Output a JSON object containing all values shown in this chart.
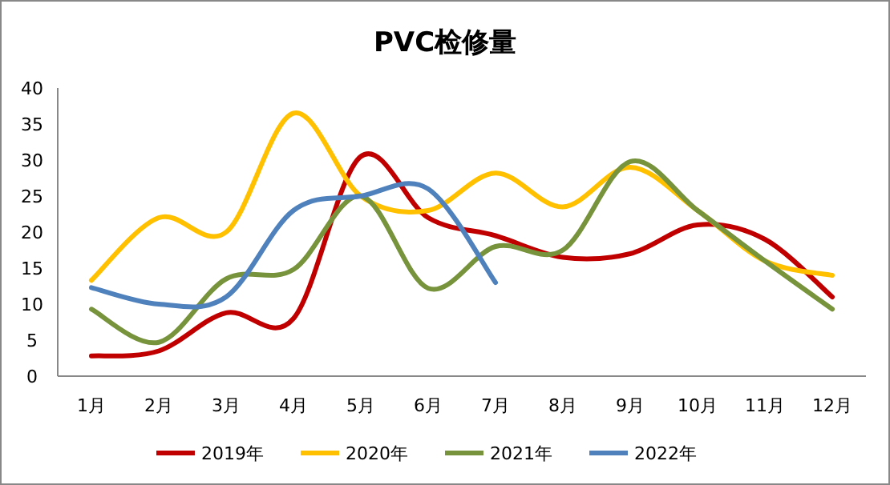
{
  "chart_data": {
    "type": "line",
    "title": "PVC检修量",
    "categories": [
      "1月",
      "2月",
      "3月",
      "4月",
      "5月",
      "6月",
      "7月",
      "8月",
      "9月",
      "10月",
      "11月",
      "12月"
    ],
    "ylim": [
      0,
      40
    ],
    "yticks": [
      0,
      5,
      10,
      15,
      20,
      25,
      30,
      35,
      40
    ],
    "grid": false,
    "legend": "bottom",
    "marker": "none",
    "series": [
      {
        "name": "2019年",
        "color": "#c00000",
        "values": [
          2.8,
          3.5,
          8.8,
          8,
          30.5,
          22,
          19.5,
          16.5,
          17,
          21,
          19,
          11
        ]
      },
      {
        "name": "2020年",
        "color": "#ffc000",
        "values": [
          13.3,
          22,
          20,
          36.5,
          25,
          23,
          28.2,
          23.5,
          29,
          23,
          16,
          14
        ]
      },
      {
        "name": "2021年",
        "color": "#77933c",
        "values": [
          9.3,
          4.7,
          13.5,
          14.8,
          25,
          12.2,
          18,
          17.5,
          29.8,
          23,
          16,
          9.3
        ]
      },
      {
        "name": "2022年",
        "color": "#4f81bd",
        "values": [
          12.3,
          10,
          11,
          23,
          25,
          26,
          13,
          null,
          null,
          null,
          null,
          null
        ]
      }
    ]
  }
}
